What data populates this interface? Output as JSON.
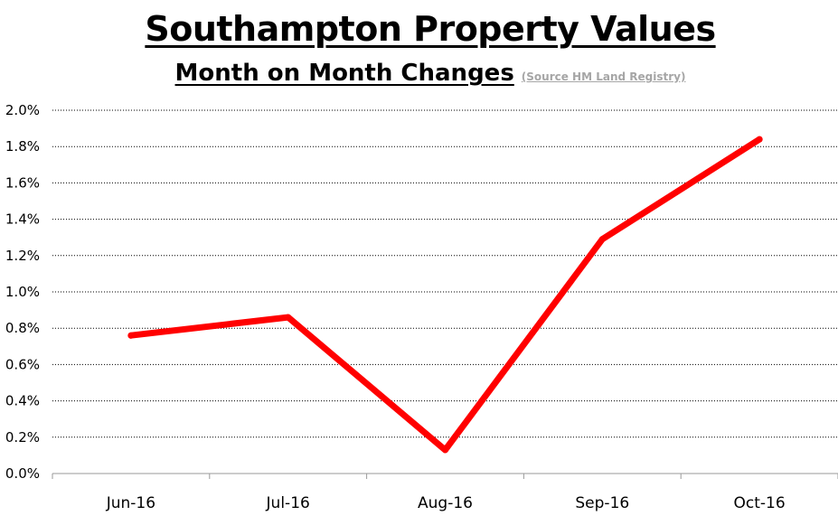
{
  "chart_data": {
    "type": "line",
    "title": "Southampton Property Values",
    "subtitle": "Month on Month Changes",
    "source_note": "(Source HM Land Registry)",
    "categories": [
      "Jun-16",
      "Jul-16",
      "Aug-16",
      "Sep-16",
      "Oct-16"
    ],
    "series": [
      {
        "values": [
          0.76,
          0.86,
          0.13,
          1.29,
          1.84
        ],
        "color": "#ff0000"
      }
    ],
    "yticks": [
      "0.0%",
      "0.2%",
      "0.4%",
      "0.6%",
      "0.8%",
      "1.0%",
      "1.2%",
      "1.4%",
      "1.6%",
      "1.8%",
      "2.0%"
    ],
    "ylim": [
      0,
      2.0
    ],
    "y_unit": "%",
    "grid": "horizontal-dotted",
    "legend": "none"
  }
}
